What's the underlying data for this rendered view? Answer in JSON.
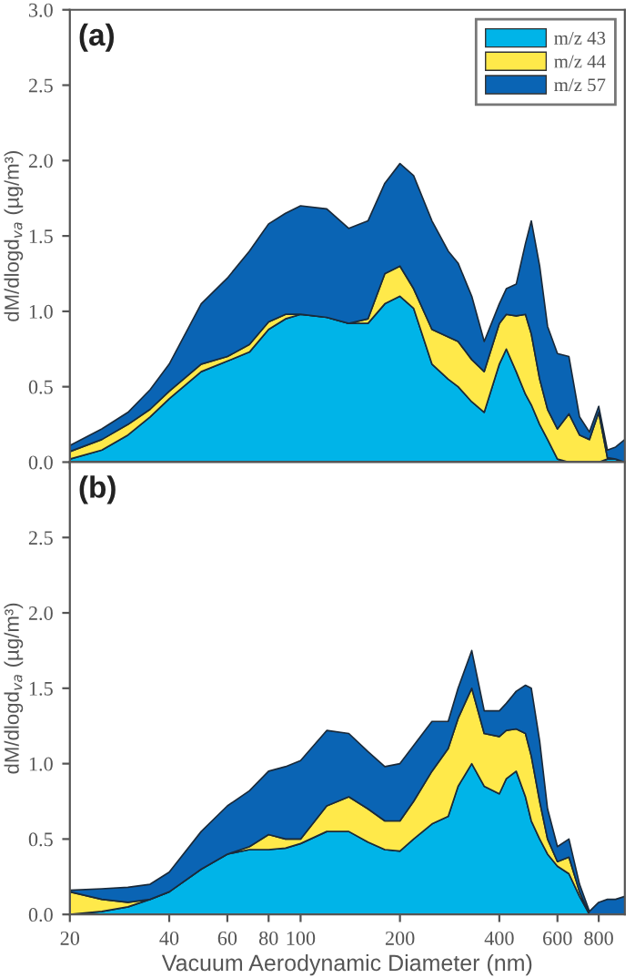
{
  "chart_data": [
    {
      "type": "area",
      "title": "(a)",
      "stacked": true,
      "log": "x",
      "ylabel": "dM/dlogd$_{va}$ (µg/m³)",
      "legend": "top right",
      "grid": false,
      "tick_labels": "y",
      "x": [
        20,
        25,
        30,
        35,
        40,
        50,
        60,
        70,
        80,
        90,
        100,
        120,
        140,
        160,
        180,
        200,
        220,
        250,
        280,
        300,
        330,
        360,
        400,
        420,
        450,
        480,
        500,
        530,
        560,
        600,
        650,
        700,
        750,
        800,
        850,
        900,
        960
      ],
      "xlim": [
        20,
        960
      ],
      "xticks": [
        20,
        40,
        60,
        80,
        100,
        200,
        400,
        600,
        800
      ],
      "ylim": [
        0,
        3
      ],
      "yticks": [
        {
          "value": 0,
          "label": "0.0"
        },
        {
          "value": 0.5,
          "label": "0.5"
        },
        {
          "value": 1,
          "label": "1.0"
        },
        {
          "value": 1.5,
          "label": "1.5"
        },
        {
          "value": 2,
          "label": "2.0"
        },
        {
          "value": 2.5,
          "label": "2.5"
        },
        {
          "value": 3,
          "label": "3.0"
        }
      ],
      "series": [
        {
          "name": "m/z 43",
          "color": "#00b4e8",
          "values": [
            0.02,
            0.08,
            0.18,
            0.3,
            0.42,
            0.6,
            0.67,
            0.73,
            0.88,
            0.95,
            0.98,
            0.96,
            0.92,
            0.92,
            1.05,
            1.1,
            1.02,
            0.65,
            0.55,
            0.5,
            0.4,
            0.33,
            0.65,
            0.75,
            0.6,
            0.45,
            0.38,
            0.25,
            0.15,
            0.02,
            0,
            0,
            0,
            0,
            0.02,
            0.02,
            0
          ]
        },
        {
          "name": "m/z 44",
          "color": "#ffe94a",
          "values": [
            0.05,
            0.07,
            0.07,
            0.05,
            0.05,
            0.05,
            0.03,
            0.05,
            0.05,
            0.03,
            0,
            0,
            0,
            0.03,
            0.2,
            0.2,
            0.13,
            0.23,
            0.28,
            0.3,
            0.28,
            0.27,
            0.27,
            0.23,
            0.37,
            0.53,
            0.47,
            0.3,
            0.2,
            0.2,
            0.32,
            0.18,
            0.15,
            0.33,
            0.01,
            0,
            0
          ]
        },
        {
          "name": "m/z 57",
          "color": "#0a64b4",
          "values": [
            0.04,
            0.07,
            0.08,
            0.13,
            0.18,
            0.4,
            0.52,
            0.62,
            0.65,
            0.67,
            0.72,
            0.72,
            0.63,
            0.65,
            0.6,
            0.68,
            0.75,
            0.72,
            0.57,
            0.52,
            0.42,
            0.2,
            0.13,
            0.17,
            0.21,
            0.47,
            0.75,
            0.75,
            0.55,
            0.5,
            0.38,
            0.12,
            0.05,
            0.04,
            0.05,
            0.08,
            0.15
          ]
        }
      ]
    },
    {
      "type": "area",
      "title": "(b)",
      "stacked": true,
      "log": "x",
      "ylabel": "dM/dlogd$_{va}$ (µg/m³)",
      "xlabel": "Vacuum Aerodynamic Diameter (nm)",
      "grid": false,
      "x": [
        20,
        25,
        30,
        35,
        40,
        50,
        60,
        70,
        80,
        90,
        100,
        120,
        140,
        160,
        180,
        200,
        220,
        250,
        280,
        300,
        330,
        360,
        400,
        420,
        450,
        480,
        500,
        530,
        560,
        600,
        650,
        700,
        750,
        800,
        850,
        900,
        960
      ],
      "xlim": [
        20,
        960
      ],
      "xticks": [
        20,
        40,
        60,
        80,
        100,
        200,
        400,
        600,
        800
      ],
      "ylim": [
        0,
        3
      ],
      "yticks": [
        {
          "value": 0,
          "label": "0.0"
        },
        {
          "value": 0.5,
          "label": "0.5"
        },
        {
          "value": 1,
          "label": "1.0"
        },
        {
          "value": 1.5,
          "label": "1.5"
        },
        {
          "value": 2,
          "label": "2.0"
        },
        {
          "value": 2.5,
          "label": "2.5"
        }
      ],
      "series": [
        {
          "color": "#00b4e8",
          "values": [
            0,
            0.02,
            0.05,
            0.1,
            0.15,
            0.3,
            0.4,
            0.43,
            0.43,
            0.44,
            0.47,
            0.55,
            0.55,
            0.48,
            0.43,
            0.42,
            0.5,
            0.6,
            0.65,
            0.85,
            1.0,
            0.85,
            0.8,
            0.9,
            0.95,
            0.78,
            0.62,
            0.5,
            0.4,
            0.32,
            0.27,
            0.12,
            0,
            0,
            0,
            0,
            0
          ]
        },
        {
          "color": "#ffe94a",
          "values": [
            0.15,
            0.08,
            0.03,
            0,
            0,
            0,
            0,
            0.02,
            0.1,
            0.06,
            0.03,
            0.17,
            0.23,
            0.22,
            0.19,
            0.2,
            0.25,
            0.35,
            0.45,
            0.45,
            0.5,
            0.35,
            0.38,
            0.32,
            0.28,
            0.42,
            0.43,
            0.25,
            0.1,
            0.03,
            0.11,
            0.03,
            0,
            0,
            0,
            0,
            0
          ]
        },
        {
          "color": "#0a64b4",
          "values": [
            0.01,
            0.07,
            0.1,
            0.1,
            0.13,
            0.25,
            0.32,
            0.37,
            0.42,
            0.48,
            0.52,
            0.5,
            0.42,
            0.38,
            0.36,
            0.38,
            0.37,
            0.33,
            0.18,
            0.2,
            0.25,
            0.15,
            0.17,
            0.18,
            0.25,
            0.32,
            0.45,
            0.4,
            0.2,
            0.1,
            0.12,
            0.05,
            0.02,
            0.08,
            0.1,
            0.1,
            0.12
          ]
        }
      ]
    }
  ]
}
